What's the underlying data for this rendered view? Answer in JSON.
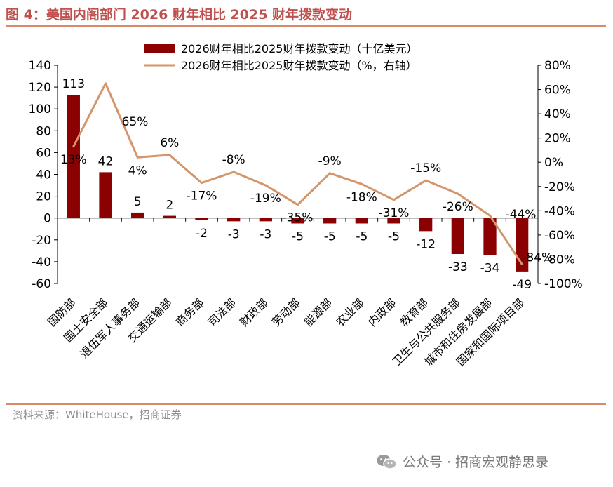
{
  "figure": {
    "title": "图 4：美国内阁部门 2026 财年相比 2025 财年拨款变动",
    "source": "资料来源：WhiteHouse，招商证券",
    "watermark": "公众号 · 招商宏观静思录"
  },
  "colors": {
    "bar": "#8b0000",
    "line": "#d4956a",
    "accent": "#c0504d"
  },
  "chart_data": {
    "type": "bar",
    "categories": [
      "国防部",
      "国土安全部",
      "退伍军人事务部",
      "交通运输部",
      "商务部",
      "司法部",
      "财政部",
      "劳动部",
      "能源部",
      "农业部",
      "内政部",
      "教育部",
      "卫生与公共服务部",
      "城市和住房发展部",
      "国家和国际项目部"
    ],
    "series": [
      {
        "name": "2026财年相比2025财年拨款变动（十亿美元）",
        "type": "bar",
        "axis": "left",
        "values": [
          113,
          42,
          5,
          2,
          -2,
          -3,
          -3,
          -5,
          -5,
          -5,
          -5,
          -12,
          -33,
          -34,
          -49
        ],
        "labels": [
          "113",
          "42",
          "5",
          "2",
          "-2",
          "-3",
          "-3",
          "-5",
          "-5",
          "-5",
          "-5",
          "-12",
          "-33",
          "-34",
          "-49"
        ]
      },
      {
        "name": "2026财年相比2025财年拨款变动（%，右轴）",
        "type": "line",
        "axis": "right",
        "values": [
          13,
          65,
          4,
          6,
          -17,
          -8,
          -19,
          -35,
          -9,
          -18,
          -31,
          -15,
          -26,
          -44,
          -84
        ],
        "labels": [
          "13%",
          "65%",
          "4%",
          "6%",
          "-17%",
          "-8%",
          "-19%",
          "-35%",
          "-9%",
          "-18%",
          "-31%",
          "-15%",
          "-26%",
          "-44%",
          "-84%"
        ]
      }
    ],
    "y_left": {
      "min": -60,
      "max": 140,
      "ticks": [
        "-60",
        "-40",
        "-20",
        "0",
        "20",
        "40",
        "60",
        "80",
        "100",
        "120",
        "140"
      ]
    },
    "y_right": {
      "min": -100,
      "max": 80,
      "ticks": [
        "-100%",
        "-80%",
        "-60%",
        "-40%",
        "-20%",
        "0%",
        "20%",
        "40%",
        "60%",
        "80%"
      ]
    },
    "legend_position": "top-center"
  }
}
